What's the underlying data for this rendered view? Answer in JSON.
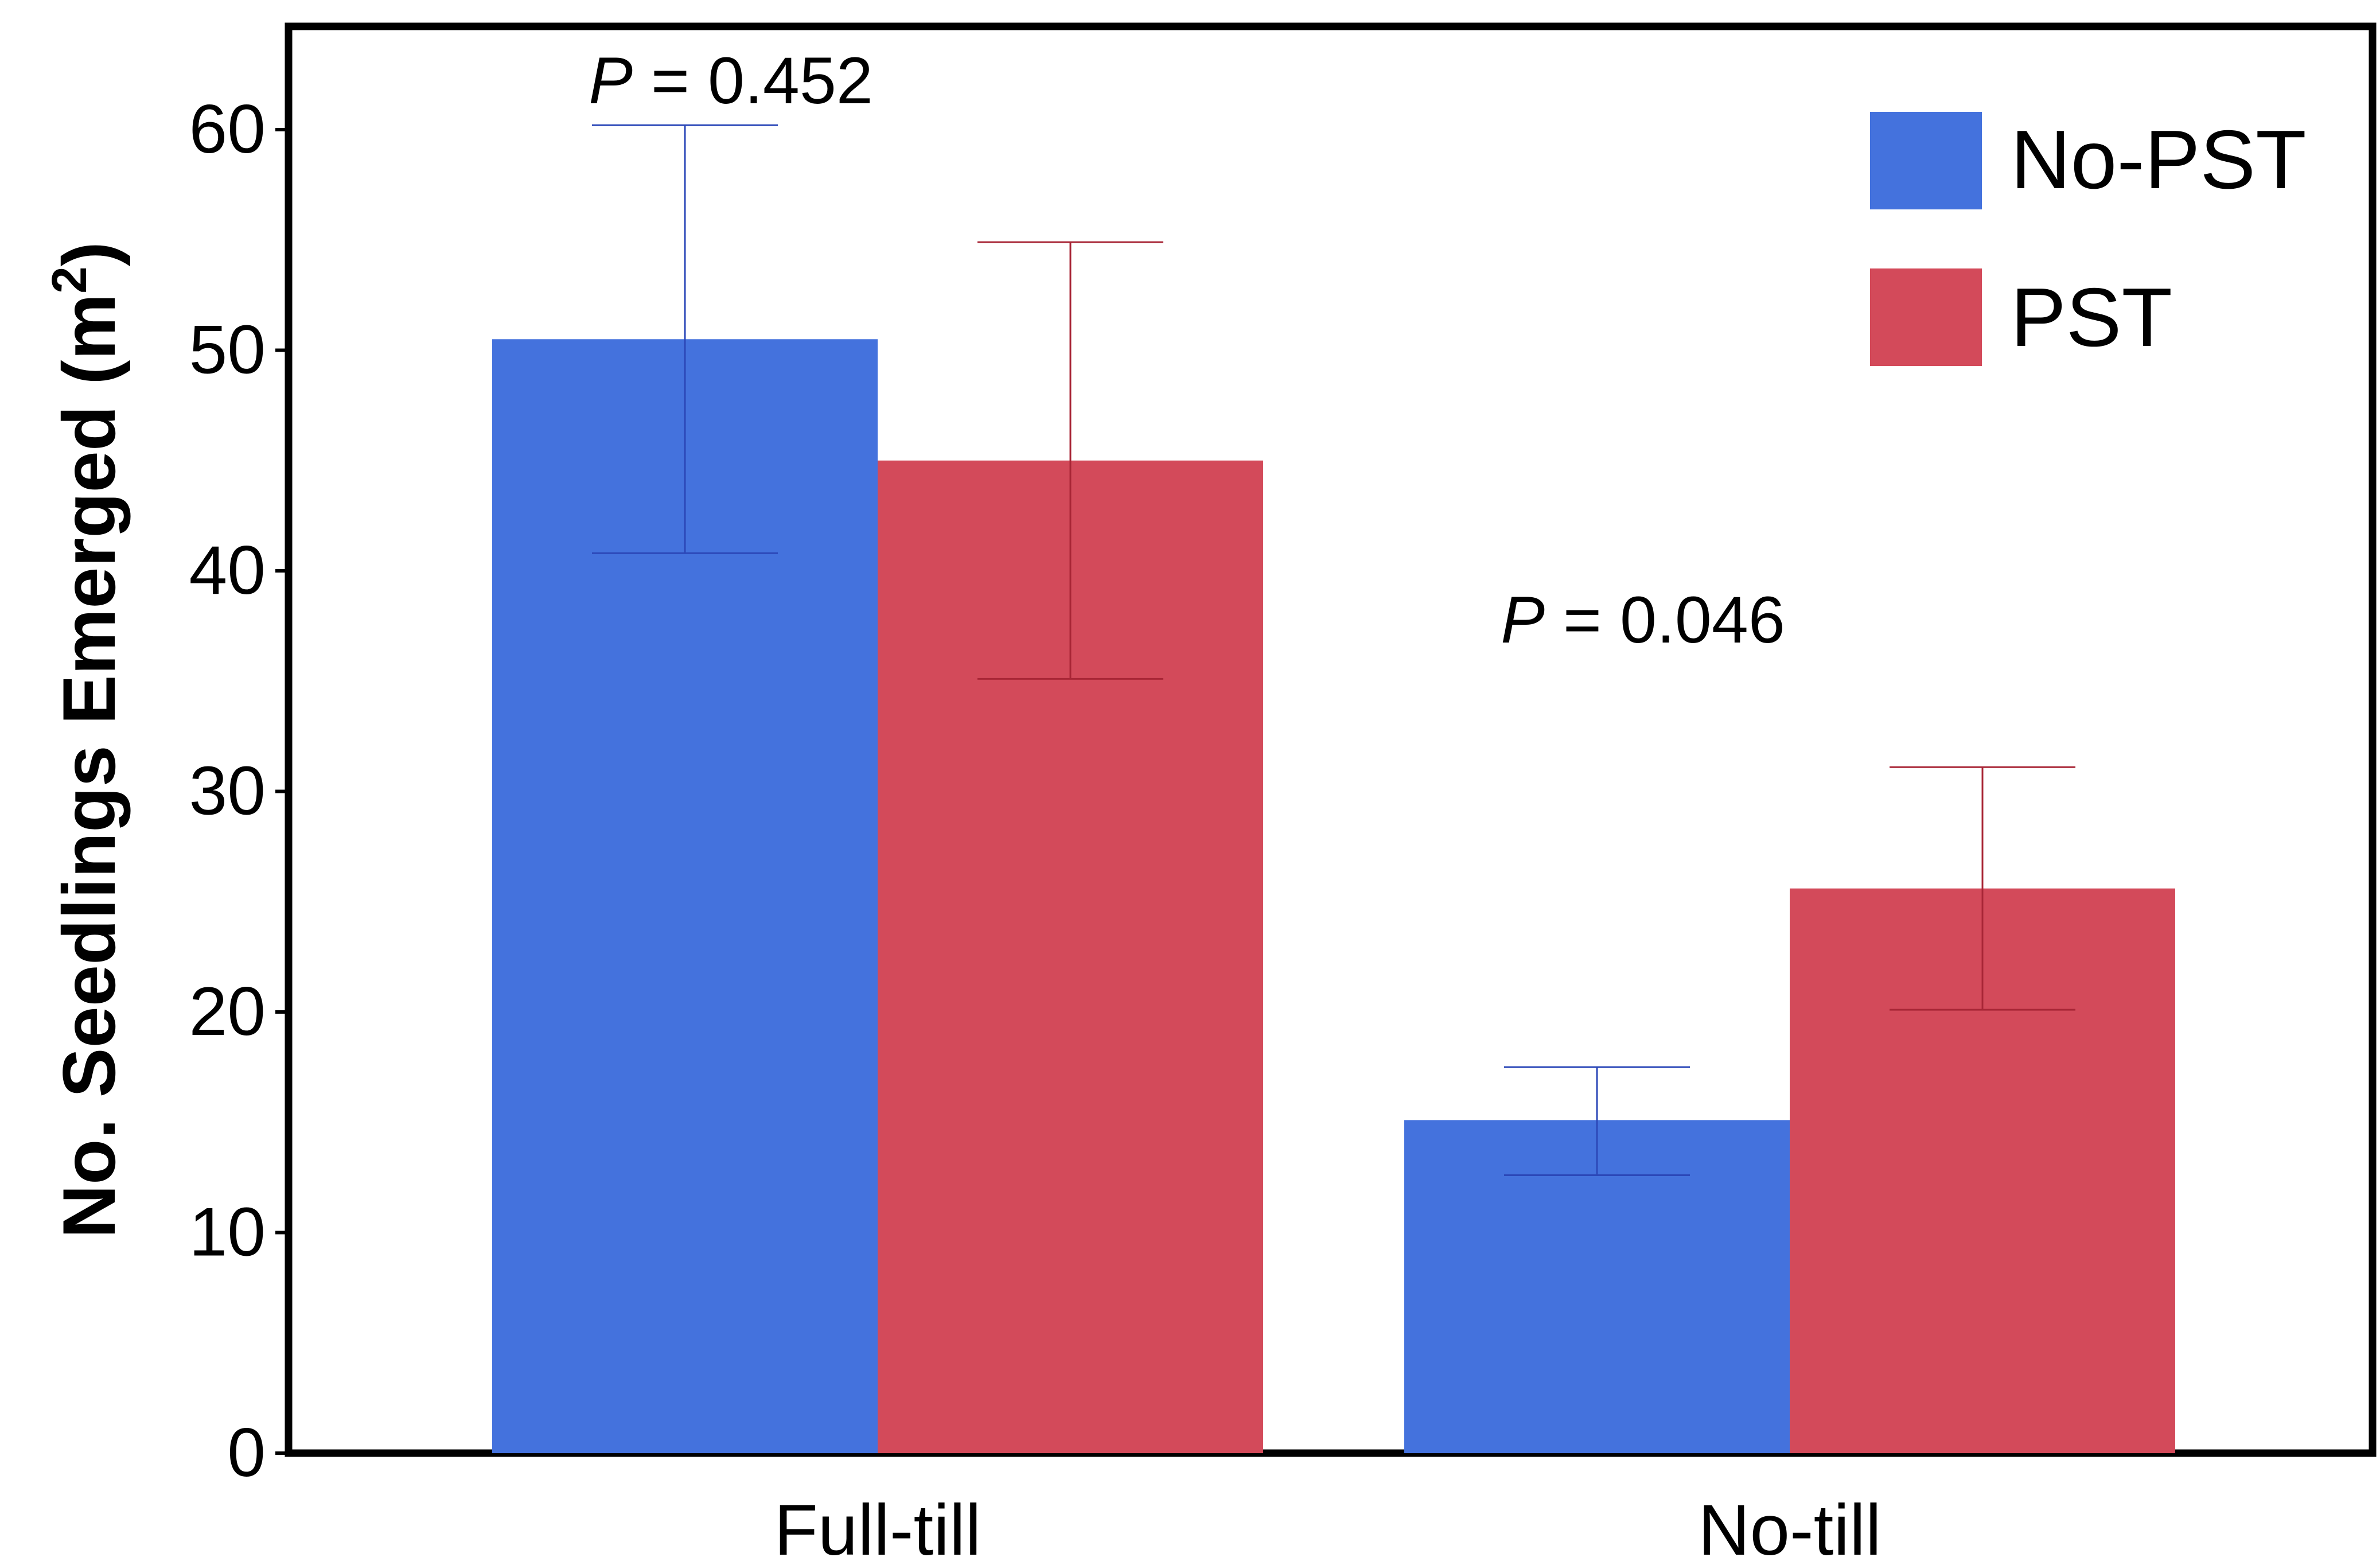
{
  "chart_data": {
    "type": "bar",
    "categories": [
      "Full-till",
      "No-till"
    ],
    "series": [
      {
        "name": "No-PST",
        "color": "#4472dd",
        "values": [
          50.5,
          15.1
        ],
        "error_upper": [
          60.2,
          17.5
        ],
        "error_lower": [
          40.8,
          12.6
        ]
      },
      {
        "name": "PST",
        "color": "#d34a5a",
        "values": [
          45.0,
          25.6
        ],
        "error_upper": [
          54.9,
          31.1
        ],
        "error_lower": [
          35.1,
          20.1
        ]
      }
    ],
    "ylabel": "No. Seedlings Emerged (m²)",
    "ylabel_main": "No. Seedlings Emerged (m",
    "ylabel_sup": "2",
    "ylabel_end": ")",
    "xlabel": "",
    "ylim": [
      0,
      65
    ],
    "yticks": [
      0,
      10,
      20,
      30,
      40,
      50,
      60
    ],
    "annotations": [
      {
        "p_label": "P",
        "text": " = 0.452",
        "category": "Full-till"
      },
      {
        "p_label": "P",
        "text": " = 0.046",
        "category": "No-till"
      }
    ],
    "legend": {
      "position": "top-right"
    },
    "grid": false
  }
}
